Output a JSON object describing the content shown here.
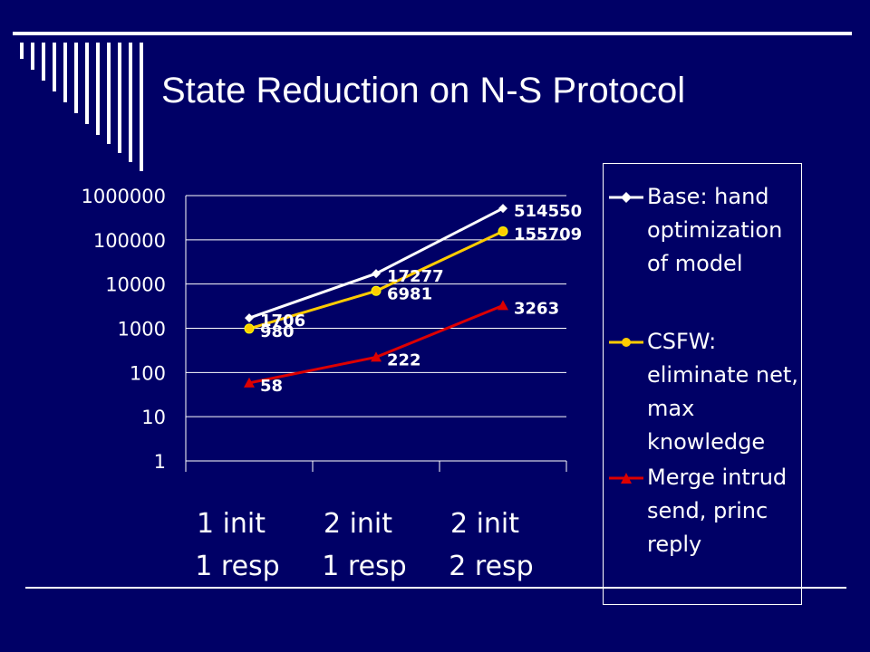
{
  "slide": {
    "title": "State Reduction on N-S Protocol"
  },
  "colors": {
    "background": "#000066",
    "base": "#ffffff",
    "csfw": "#ffcc00",
    "merge": "#dd0000",
    "marker_outline": "#ffff00"
  },
  "chart_data": {
    "type": "line",
    "title": "",
    "xlabel": "",
    "ylabel": "",
    "yscale": "log",
    "ylim": [
      1,
      1000000
    ],
    "yticks": [
      "1",
      "10",
      "100",
      "1000",
      "10000",
      "100000",
      "1000000"
    ],
    "categories": [
      {
        "line1": "1 init",
        "line2": "1 resp"
      },
      {
        "line1": "2 init",
        "line2": "1 resp"
      },
      {
        "line1": "2 init",
        "line2": "2 resp"
      }
    ],
    "grid": true,
    "legend_position": "right",
    "series": [
      {
        "name": "Base: hand optimization of model",
        "marker": "diamond",
        "color": "#ffffff",
        "values": [
          1706,
          17277,
          514550
        ],
        "labels": [
          "1706",
          "17277",
          "514550"
        ]
      },
      {
        "name": "CSFW: eliminate net, max knowledge",
        "marker": "circle",
        "color": "#ffcc00",
        "values": [
          980,
          6981,
          155709
        ],
        "labels": [
          "980",
          "6981",
          "155709"
        ]
      },
      {
        "name": "Merge intrud send, princ reply",
        "marker": "triangle",
        "color": "#dd0000",
        "values": [
          58,
          222,
          3263
        ],
        "labels": [
          "58",
          "222",
          "3263"
        ]
      }
    ]
  }
}
